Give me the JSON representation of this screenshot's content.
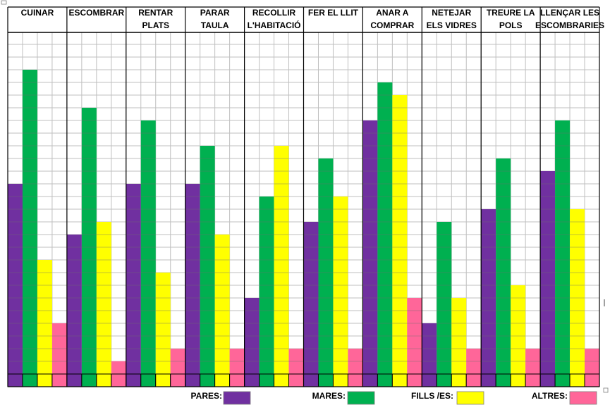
{
  "chart_data": {
    "type": "bar",
    "title": "",
    "xlabel": "",
    "ylabel": "",
    "ylim": [
      0,
      27
    ],
    "grid": true,
    "categories": [
      [
        "CUINAR"
      ],
      [
        "ESCOMBRAR"
      ],
      [
        "RENTAR",
        "PLATS"
      ],
      [
        "PARAR",
        "TAULA"
      ],
      [
        "RECOLLIR",
        "L'HABITACIÓ"
      ],
      [
        "FER EL LLIT"
      ],
      [
        "ANAR A",
        "COMPRAR"
      ],
      [
        "NETEJAR",
        "ELS VIDRES"
      ],
      [
        "TREURE LA",
        "POLS"
      ],
      [
        "LLENÇAR LES",
        "ESCOMBRARIES"
      ]
    ],
    "series": [
      {
        "name": "PARES",
        "color": "#7030A0",
        "values": [
          15,
          11,
          15,
          15,
          6,
          12,
          20,
          4,
          13,
          16
        ]
      },
      {
        "name": "MARES",
        "color": "#00B050",
        "values": [
          24,
          21,
          20,
          18,
          14,
          17,
          23,
          12,
          17,
          20
        ]
      },
      {
        "name": "FILLS /ES",
        "color": "#FFFF00",
        "values": [
          9,
          12,
          8,
          11,
          18,
          14,
          22,
          6,
          7,
          13
        ]
      },
      {
        "name": "ALTRES",
        "color": "#FF6699",
        "values": [
          4,
          1,
          2,
          2,
          2,
          2,
          6,
          2,
          2,
          2
        ]
      }
    ],
    "legend": {
      "placement": "bottom",
      "items": [
        {
          "label": "PARES:",
          "color": "#7030A0"
        },
        {
          "label": "MARES:",
          "color": "#00B050"
        },
        {
          "label": "FILLS /ES:",
          "color": "#FFFF00"
        },
        {
          "label": "ALTRES:",
          "color": "#FF6699"
        }
      ]
    }
  }
}
